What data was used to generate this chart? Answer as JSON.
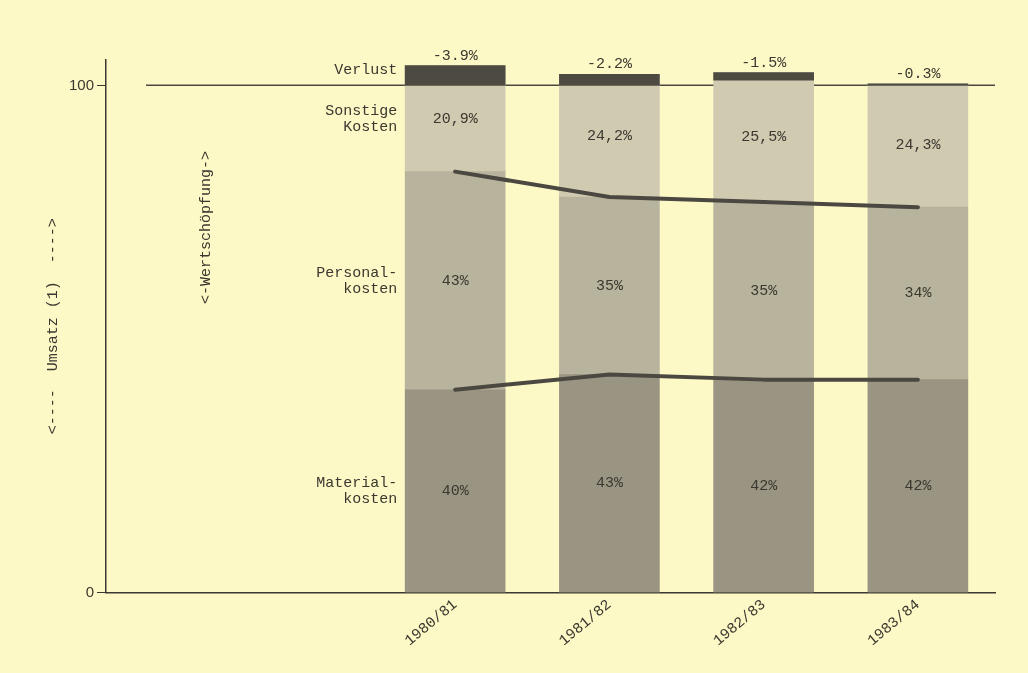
{
  "chart_data": {
    "type": "bar",
    "stacked": true,
    "categories": [
      "1980/81",
      "1981/82",
      "1982/83",
      "1983/84"
    ],
    "ylabel": "<----  Umsatz (1)  ---->",
    "ylim": [
      0,
      105
    ],
    "yticks": [
      0,
      100
    ],
    "series": [
      {
        "name": "Material-\nkosten",
        "color": "#9a9482",
        "values": [
          40,
          43,
          42,
          42
        ],
        "value_labels": [
          "40%",
          "43%",
          "42%",
          "42%"
        ]
      },
      {
        "name": "Personal-\nkosten",
        "color": "#b8b39c",
        "values": [
          43,
          35,
          35,
          34
        ],
        "value_labels": [
          "43%",
          "35%",
          "35%",
          "34%"
        ]
      },
      {
        "name": "Sonstige\nKosten",
        "color": "#d0cab0",
        "values": [
          20.9,
          24.2,
          25.5,
          24.3
        ],
        "value_labels": [
          "20,9%",
          "24,2%",
          "25,5%",
          "24,3%"
        ]
      },
      {
        "name": "Verlust",
        "color": "#4d4a42",
        "values": [
          -3.9,
          -2.2,
          -1.5,
          -0.3
        ],
        "base": [
          103.9,
          102.2,
          102.5,
          100.3
        ],
        "value_labels": [
          "-3.9%",
          "-2.2%",
          "-1.5%",
          "-0.3%"
        ]
      },
      {
        "type": "line",
        "color": "#4a4840",
        "values": [
          40,
          43,
          42,
          42
        ]
      },
      {
        "type": "line",
        "color": "#4a4840",
        "values": [
          83,
          78,
          77,
          76
        ]
      }
    ],
    "ref_lines": [
      {
        "axis": "y",
        "value": 100,
        "color": "#4a4840"
      }
    ],
    "annotations": [
      "<-Wertschöpfung->"
    ]
  }
}
